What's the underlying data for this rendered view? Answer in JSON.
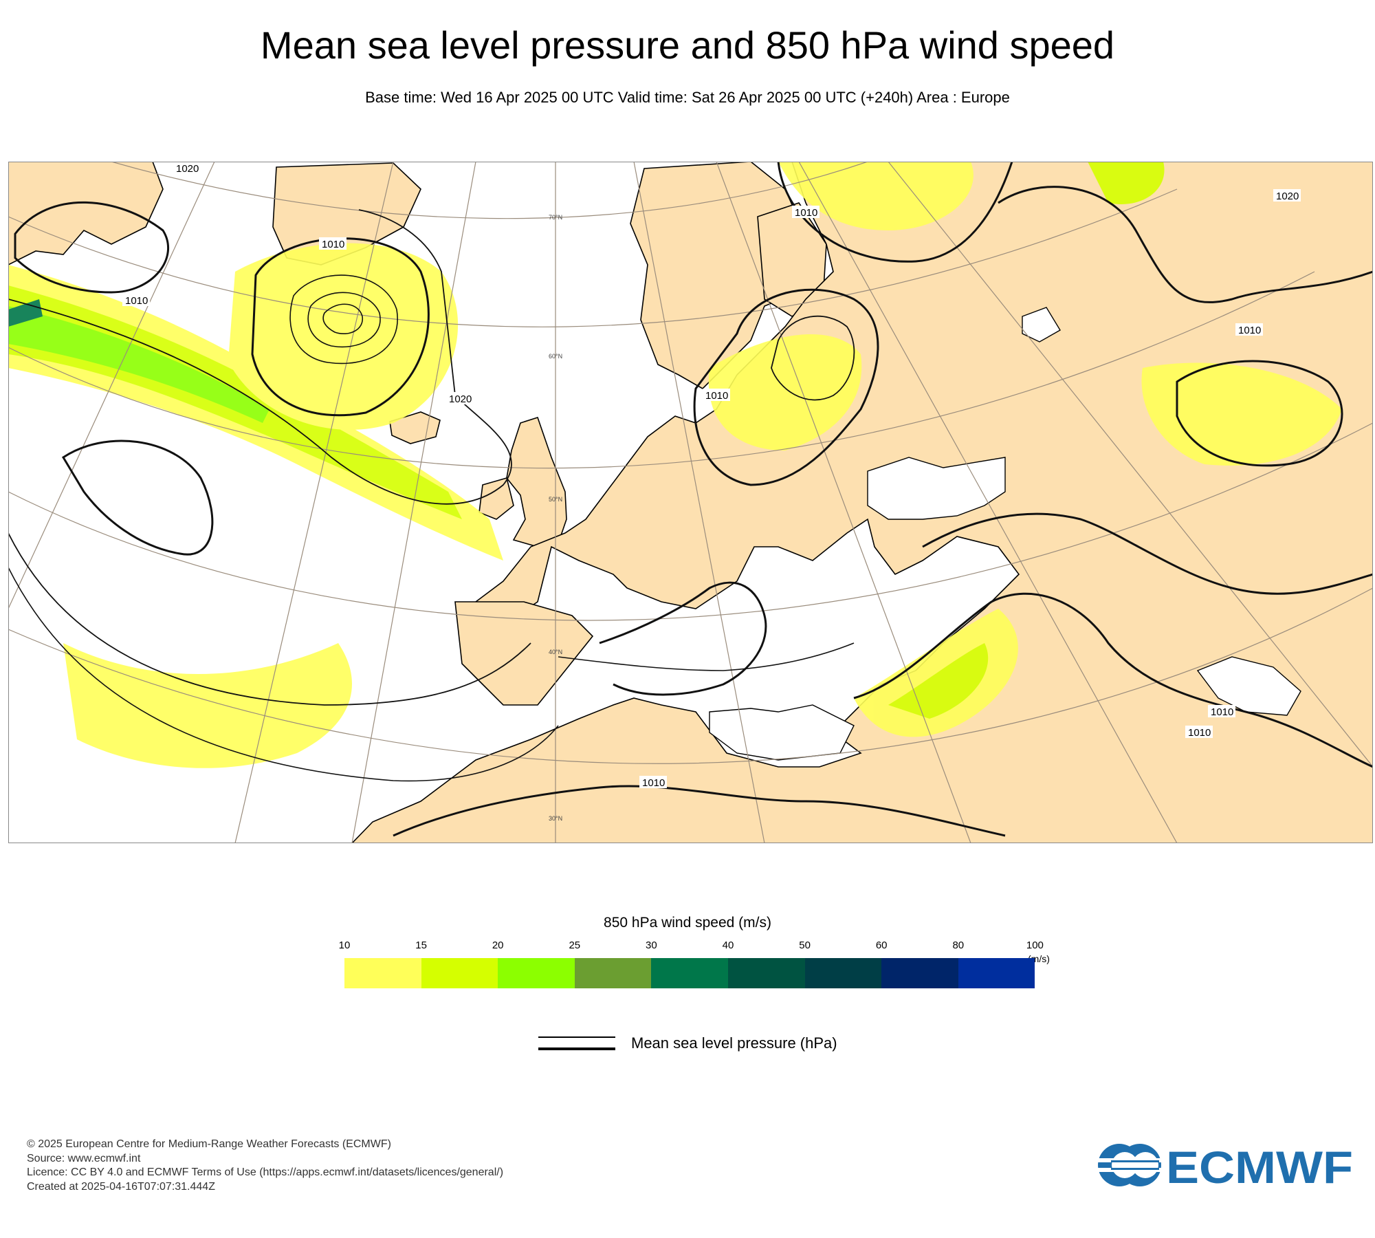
{
  "header": {
    "title": "Mean sea level pressure and 850 hPa wind speed",
    "subtitle": "Base time: Wed 16 Apr 2025 00 UTC Valid time: Sat 26 Apr 2025 00 UTC (+240h) Area : Europe"
  },
  "map": {
    "area": "Europe",
    "isobar_labels": [
      "1020",
      "1010",
      "1010",
      "1020",
      "1010",
      "1010",
      "1020",
      "1010",
      "1010",
      "1010",
      "1010"
    ],
    "latitude_labels": [
      "70°N",
      "60°N",
      "50°N",
      "40°N",
      "30°N"
    ],
    "colors": {
      "land": "#fde0b0",
      "sea": "#ffffff",
      "coast": "#000000",
      "grid": "#9a8c7c"
    }
  },
  "legend": {
    "title": "850 hPa wind speed (m/s)",
    "unit": "(m/s)",
    "thresholds": [
      "10",
      "15",
      "20",
      "25",
      "30",
      "40",
      "50",
      "60",
      "80",
      "100"
    ],
    "colors": [
      "#ffff59",
      "#d5ff00",
      "#8cff00",
      "#6b9e31",
      "#00774a",
      "#005341",
      "#003e46",
      "#002569",
      "#002e9e"
    ],
    "pressure_label": "Mean sea level pressure (hPa)"
  },
  "footer": {
    "lines": [
      "© 2025 European Centre for Medium-Range Weather Forecasts (ECMWF)",
      "Source: www.ecmwf.int",
      "Licence: CC BY 4.0 and ECMWF Terms of Use (https://apps.ecmwf.int/datasets/licences/general/)",
      "Created at 2025-04-16T07:07:31.444Z"
    ],
    "logo_text": "ECMWF",
    "logo_color": "#1f6fae"
  }
}
